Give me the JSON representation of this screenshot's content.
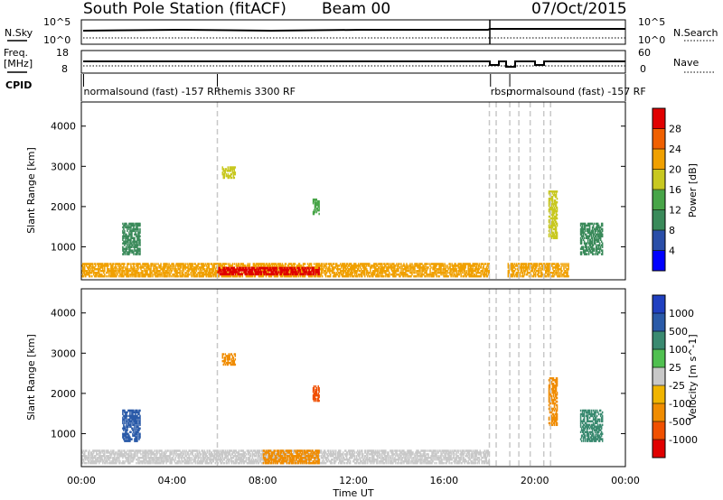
{
  "header": {
    "station": "South Pole Station (fitACF)",
    "beam": "Beam 00",
    "date": "07/Oct/2015"
  },
  "noise_panel": {
    "left_label": "N.Sky",
    "right_label": "N.Search",
    "left_ticks": [
      "10^5",
      "10^0"
    ],
    "right_ticks": [
      "10^5",
      "10^0"
    ]
  },
  "freq_panel": {
    "left_label_1": "Freq.",
    "left_label_2": "[MHz]",
    "right_label": "Nave",
    "left_ticks": [
      "18",
      "8"
    ],
    "right_ticks": [
      "60",
      "0"
    ]
  },
  "cpid": {
    "label": "CPID",
    "programs": [
      {
        "text": "normalsound (fast) -157 RF",
        "hour": 0.1
      },
      {
        "text": "themis 3300 RF",
        "hour": 6.0
      },
      {
        "text": "rbsp",
        "hour": 18.05
      },
      {
        "text": "normalsound (fast) -157 RF",
        "hour": 18.9
      }
    ]
  },
  "time_axis": {
    "label": "Time UT",
    "ticks": [
      "00:00",
      "04:00",
      "08:00",
      "12:00",
      "16:00",
      "20:00",
      "00:00"
    ]
  },
  "colors": {
    "power": [
      "#0000ff",
      "#2a4ea8",
      "#3a8a5a",
      "#48a548",
      "#c8c820",
      "#f0a000",
      "#f06000",
      "#e00000"
    ],
    "velocity": [
      "#e00000",
      "#f05000",
      "#f08c00",
      "#f0b400",
      "#c8c8c8",
      "#50c050",
      "#3a8a70",
      "#2a5aa8",
      "#2040c0"
    ]
  },
  "chart_data": [
    {
      "type": "heatmap",
      "title": "Power",
      "xlabel": "Time UT",
      "ylabel": "Slant Range [km]",
      "colorbar_label": "Power [dB]",
      "xlim": [
        0,
        24
      ],
      "ylim": [
        180,
        4600
      ],
      "y_ticks": [
        1000,
        2000,
        3000,
        4000
      ],
      "colorbar_ticks": [
        "4",
        "8",
        "12",
        "16",
        "20",
        "24",
        "28"
      ],
      "colorbar_range": [
        0,
        32
      ],
      "patches": [
        {
          "t0": 0.0,
          "t1": 18.0,
          "r0": 250,
          "r1": 600,
          "level": 22
        },
        {
          "t0": 18.8,
          "t1": 21.5,
          "r0": 250,
          "r1": 600,
          "level": 20
        },
        {
          "t0": 6.0,
          "t1": 10.5,
          "r0": 300,
          "r1": 500,
          "level": 28
        },
        {
          "t0": 1.8,
          "t1": 2.6,
          "r0": 800,
          "r1": 1600,
          "level": 10
        },
        {
          "t0": 6.2,
          "t1": 6.8,
          "r0": 2700,
          "r1": 3000,
          "level": 16
        },
        {
          "t0": 10.2,
          "t1": 10.5,
          "r0": 1800,
          "r1": 2200,
          "level": 12
        },
        {
          "t0": 20.6,
          "t1": 21.0,
          "r0": 1200,
          "r1": 2400,
          "level": 18
        },
        {
          "t0": 22.0,
          "t1": 23.0,
          "r0": 800,
          "r1": 1600,
          "level": 10
        }
      ]
    },
    {
      "type": "heatmap",
      "title": "Velocity",
      "xlabel": "Time UT",
      "ylabel": "Slant Range [km]",
      "colorbar_label": "Velocity [m s^-1]",
      "xlim": [
        0,
        24
      ],
      "ylim": [
        180,
        4600
      ],
      "y_ticks": [
        1000,
        2000,
        3000,
        4000
      ],
      "colorbar_ticks": [
        "-1000",
        "-500",
        "-100",
        "-25",
        "25",
        "100",
        "500",
        "1000"
      ],
      "patches": [
        {
          "t0": 0.0,
          "t1": 18.0,
          "r0": 250,
          "r1": 600,
          "level": "25"
        },
        {
          "t0": 8.0,
          "t1": 10.5,
          "r0": 250,
          "r1": 600,
          "level": "-100"
        },
        {
          "t0": 1.8,
          "t1": 2.6,
          "r0": 800,
          "r1": 1600,
          "level": "1000"
        },
        {
          "t0": 6.2,
          "t1": 6.8,
          "r0": 2700,
          "r1": 3000,
          "level": "-100"
        },
        {
          "t0": 10.2,
          "t1": 10.5,
          "r0": 1800,
          "r1": 2200,
          "level": "-500"
        },
        {
          "t0": 20.6,
          "t1": 21.0,
          "r0": 1200,
          "r1": 2400,
          "level": "-100"
        },
        {
          "t0": 22.0,
          "t1": 23.0,
          "r0": 800,
          "r1": 1600,
          "level": "500"
        }
      ]
    }
  ]
}
